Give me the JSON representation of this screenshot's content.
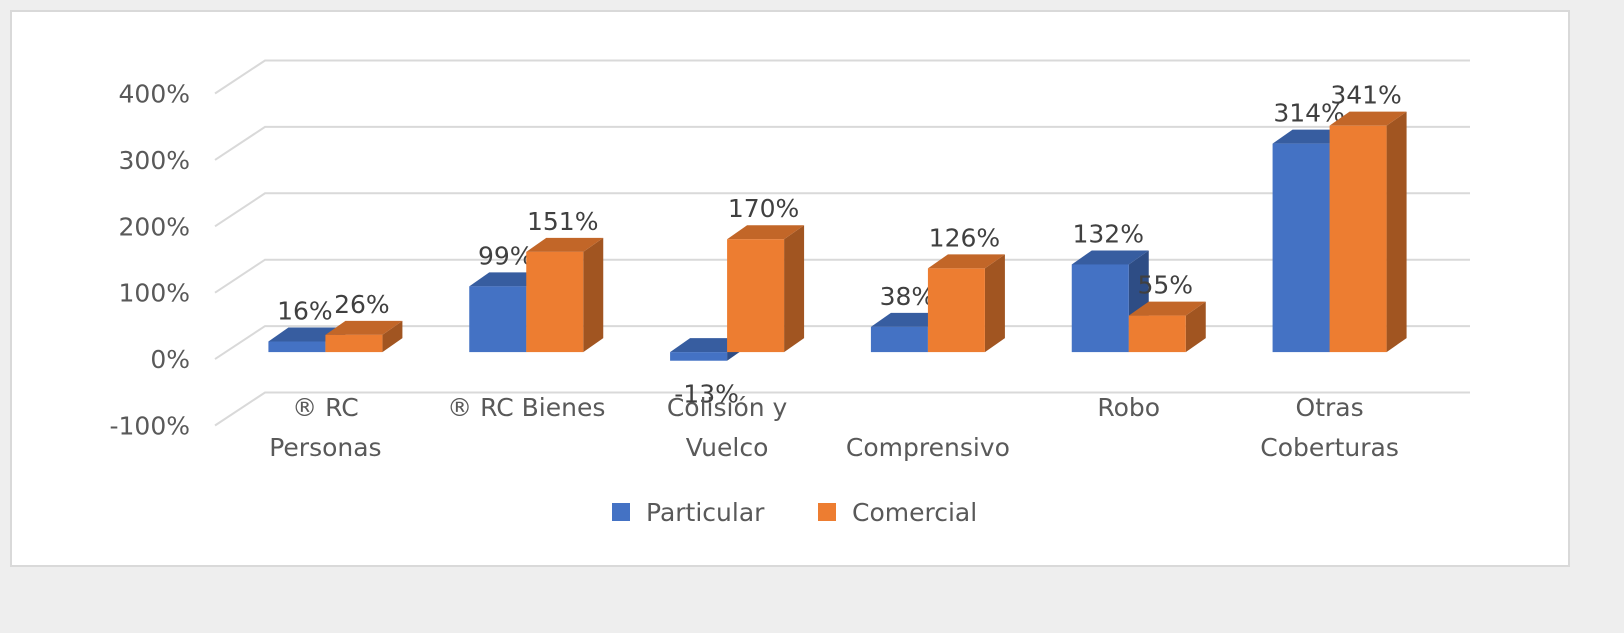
{
  "chart_data": {
    "type": "bar3d",
    "categories": [
      "® RC\nPersonas",
      "® RC Bienes",
      "Colisión y\nVuelco",
      "\nComprensivo",
      "Robo",
      "Otras\nCoberturas"
    ],
    "series": [
      {
        "name": "Particular",
        "color": "#4472c4",
        "values": [
          16,
          99,
          -13,
          38,
          132,
          314
        ],
        "value_labels": [
          "16%",
          "99%",
          "-13%",
          "38%",
          "132%",
          "314%"
        ]
      },
      {
        "name": "Comercial",
        "color": "#ed7d31",
        "values": [
          26,
          151,
          170,
          126,
          55,
          341
        ],
        "value_labels": [
          "26%",
          "151%",
          "170%",
          "126%",
          "55%",
          "341%"
        ]
      }
    ],
    "ylim": [
      -100,
      400
    ],
    "yticks": [
      {
        "value": -100,
        "label": "-100%"
      },
      {
        "value": 0,
        "label": "0%"
      },
      {
        "value": 100,
        "label": "100%"
      },
      {
        "value": 200,
        "label": "200%"
      },
      {
        "value": 300,
        "label": "300%"
      },
      {
        "value": 400,
        "label": "400%"
      }
    ],
    "grid": true,
    "legend": "bottom"
  }
}
